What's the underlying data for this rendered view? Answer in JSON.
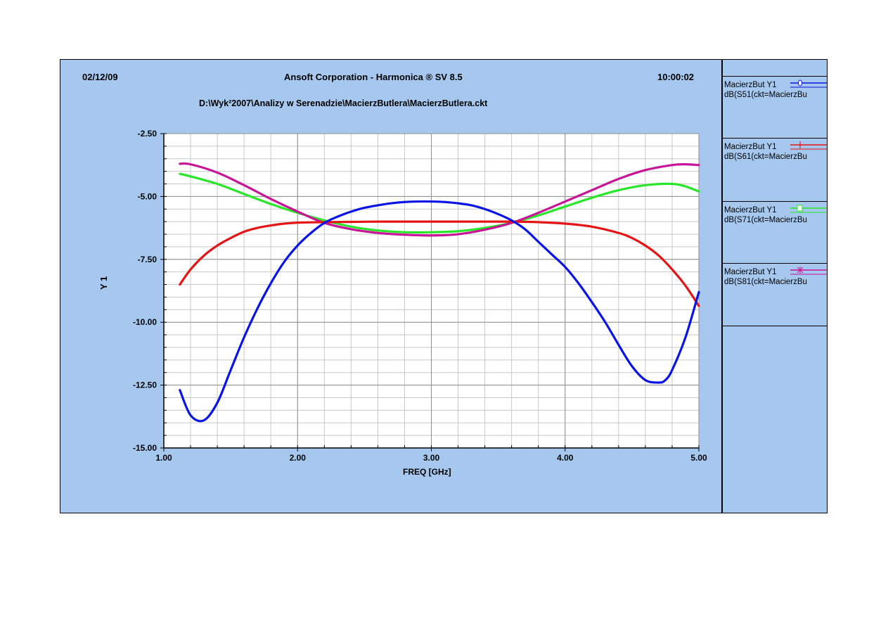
{
  "header": {
    "date": "02/12/09",
    "title": "Ansoft Corporation - Harmonica ® SV 8.5",
    "time": "10:00:02",
    "filepath": "D:\\Wyk²2007\\Analizy w Serenadzie\\MacierzButlera\\MacierzButlera.ckt"
  },
  "colors": {
    "background": "#a6c8ee",
    "plot_area": "#ffffff",
    "series_S51": "#0a14e6",
    "series_S61": "#e61414",
    "series_S71": "#28e628",
    "series_S81": "#c81496"
  },
  "legend": [
    {
      "name": "MacierzBut Y1",
      "expr": "dB(S51(ckt=MacierzBu",
      "marker": "circle",
      "color": "#0a14e6"
    },
    {
      "name": "MacierzBut Y1",
      "expr": "dB(S61(ckt=MacierzBu",
      "marker": "plus",
      "color": "#e61414"
    },
    {
      "name": "MacierzBut Y1",
      "expr": "dB(S71(ckt=MacierzBu",
      "marker": "square",
      "color": "#28e628"
    },
    {
      "name": "MacierzBut Y1",
      "expr": "dB(S81(ckt=MacierzBu",
      "marker": "asterisk",
      "color": "#c81496"
    }
  ],
  "chart_data": {
    "type": "line",
    "title": "",
    "xlabel": "FREQ [GHz]",
    "ylabel": "Y 1",
    "xlim": [
      1.0,
      5.0
    ],
    "ylim": [
      -15.0,
      -2.5
    ],
    "xticks": [
      "1.00",
      "2.00",
      "3.00",
      "4.00",
      "5.00"
    ],
    "yticks": [
      "-2.50",
      "-5.00",
      "-7.50",
      "-10.00",
      "-12.50",
      "-15.00"
    ],
    "grid": true,
    "legend_placement": "right panel",
    "series": [
      {
        "name": "dB(S51(ckt=MacierzBu",
        "color": "#0a14e6",
        "x": [
          1.12,
          1.2,
          1.3,
          1.4,
          1.5,
          1.6,
          1.7,
          1.8,
          1.9,
          2.0,
          2.1,
          2.2,
          2.3,
          2.4,
          2.5,
          2.6,
          2.7,
          2.8,
          2.9,
          3.0,
          3.1,
          3.2,
          3.3,
          3.4,
          3.5,
          3.6,
          3.7,
          3.8,
          3.9,
          4.0,
          4.1,
          4.2,
          4.3,
          4.4,
          4.5,
          4.6,
          4.7,
          4.75,
          4.8,
          4.9,
          5.0
        ],
        "y": [
          -12.7,
          -13.7,
          -13.9,
          -13.2,
          -11.9,
          -10.6,
          -9.45,
          -8.45,
          -7.6,
          -6.95,
          -6.45,
          -6.05,
          -5.8,
          -5.6,
          -5.45,
          -5.35,
          -5.27,
          -5.22,
          -5.2,
          -5.2,
          -5.22,
          -5.27,
          -5.35,
          -5.5,
          -5.7,
          -5.95,
          -6.3,
          -6.8,
          -7.3,
          -7.8,
          -8.45,
          -9.2,
          -10.0,
          -10.9,
          -11.75,
          -12.3,
          -12.4,
          -12.3,
          -11.9,
          -10.6,
          -8.8
        ]
      },
      {
        "name": "dB(S61(ckt=MacierzBu",
        "color": "#e61414",
        "x": [
          1.12,
          1.2,
          1.3,
          1.4,
          1.5,
          1.6,
          1.7,
          1.8,
          1.9,
          2.0,
          2.2,
          2.4,
          2.6,
          2.8,
          3.0,
          3.2,
          3.4,
          3.6,
          3.8,
          4.0,
          4.2,
          4.4,
          4.5,
          4.6,
          4.7,
          4.8,
          4.9,
          5.0
        ],
        "y": [
          -8.5,
          -7.9,
          -7.35,
          -6.95,
          -6.65,
          -6.4,
          -6.25,
          -6.15,
          -6.08,
          -6.04,
          -6.02,
          -6.01,
          -6.0,
          -6.0,
          -6.0,
          -6.0,
          -6.0,
          -6.0,
          -6.02,
          -6.08,
          -6.2,
          -6.45,
          -6.65,
          -6.95,
          -7.35,
          -7.9,
          -8.55,
          -9.35
        ]
      },
      {
        "name": "dB(S71(ckt=MacierzBu",
        "color": "#28e628",
        "x": [
          1.12,
          1.2,
          1.4,
          1.6,
          1.8,
          2.0,
          2.2,
          2.4,
          2.6,
          2.8,
          3.0,
          3.2,
          3.4,
          3.6,
          3.8,
          4.0,
          4.2,
          4.4,
          4.6,
          4.8,
          4.9,
          5.0
        ],
        "y": [
          -4.1,
          -4.2,
          -4.5,
          -4.9,
          -5.3,
          -5.65,
          -5.95,
          -6.2,
          -6.35,
          -6.42,
          -6.42,
          -6.38,
          -6.25,
          -6.05,
          -5.75,
          -5.4,
          -5.05,
          -4.75,
          -4.55,
          -4.5,
          -4.6,
          -4.8
        ]
      },
      {
        "name": "dB(S81(ckt=MacierzBu",
        "color": "#c81496",
        "x": [
          1.12,
          1.2,
          1.4,
          1.6,
          1.8,
          2.0,
          2.2,
          2.4,
          2.6,
          2.8,
          3.0,
          3.2,
          3.4,
          3.6,
          3.8,
          4.0,
          4.2,
          4.4,
          4.6,
          4.8,
          4.9,
          5.0
        ],
        "y": [
          -3.7,
          -3.72,
          -4.05,
          -4.55,
          -5.1,
          -5.6,
          -6.05,
          -6.3,
          -6.45,
          -6.52,
          -6.55,
          -6.5,
          -6.32,
          -6.05,
          -5.65,
          -5.2,
          -4.75,
          -4.3,
          -3.95,
          -3.75,
          -3.72,
          -3.75
        ]
      }
    ]
  }
}
